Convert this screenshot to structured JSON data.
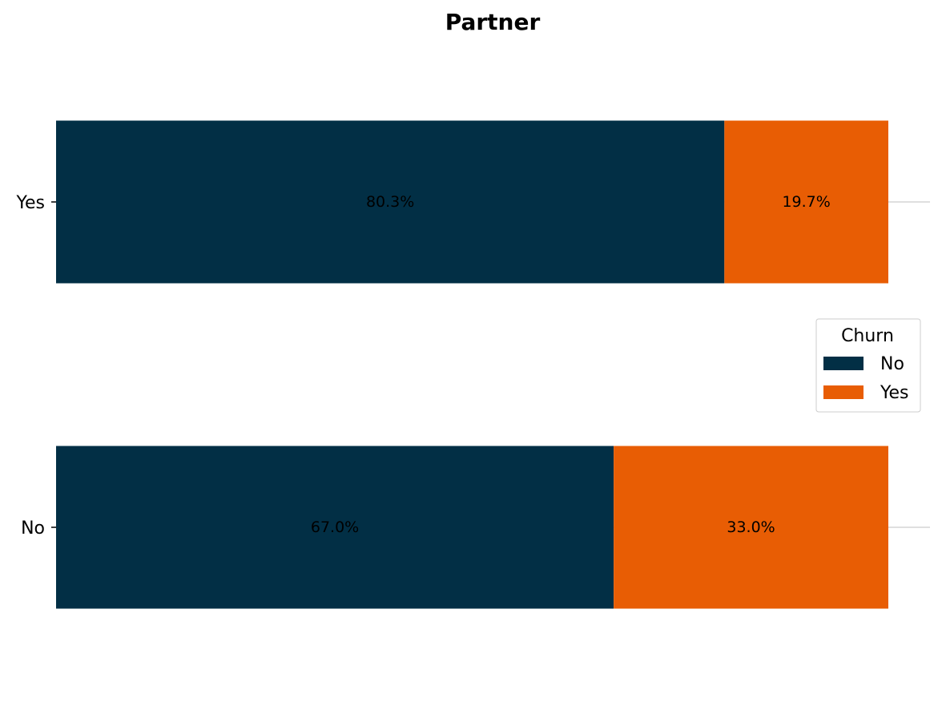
{
  "chart_data": {
    "type": "bar",
    "orientation": "horizontal",
    "stacked": true,
    "title": "Partner",
    "xlabel": "",
    "ylabel": "",
    "categories": [
      "Yes",
      "No"
    ],
    "series": [
      {
        "name": "No",
        "values": [
          80.3,
          67.0
        ],
        "labels": [
          "80.3%",
          "67.0%"
        ],
        "color": "#022f45"
      },
      {
        "name": "Yes",
        "values": [
          19.7,
          33.0
        ],
        "labels": [
          "19.7%",
          "33.0%"
        ],
        "color": "#e85d04"
      }
    ],
    "xlim": [
      0,
      100
    ],
    "grid": "y",
    "legend": {
      "title": "Churn",
      "placement": "right"
    }
  }
}
